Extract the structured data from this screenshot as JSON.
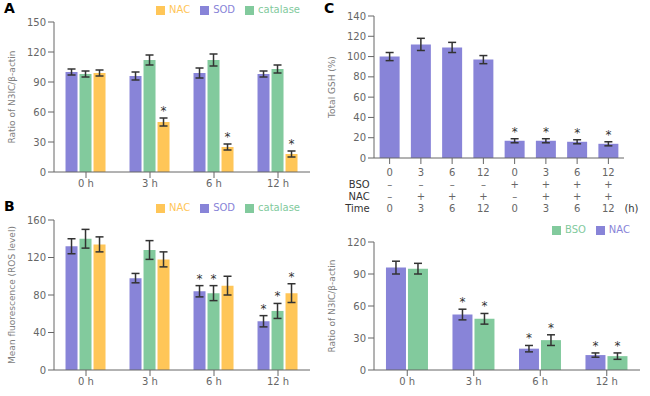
{
  "chart_data": [
    {
      "type": "bar",
      "title": "A",
      "categories": [
        "0 h",
        "3 h",
        "6 h",
        "12 h"
      ],
      "series": [
        {
          "name": "SOD",
          "color": "#8884d8",
          "values": [
            100,
            96,
            99,
            98
          ],
          "errors": [
            3,
            4,
            5,
            3
          ],
          "annotations": [
            null,
            null,
            null,
            null
          ]
        },
        {
          "name": "catalase",
          "color": "#82ca9d",
          "values": [
            98,
            112,
            112,
            103
          ],
          "errors": [
            3,
            5,
            6,
            4
          ],
          "annotations": [
            null,
            null,
            null,
            null
          ]
        },
        {
          "name": "NAC",
          "color": "#ffc658",
          "values": [
            99,
            50,
            25,
            18
          ],
          "errors": [
            3,
            4,
            3,
            3
          ],
          "annotations": [
            null,
            "*",
            "*",
            "*"
          ]
        }
      ],
      "ylim": [
        0,
        150
      ],
      "yticks": [
        0,
        30,
        60,
        90,
        120,
        150
      ],
      "ylabel": "Ratio of N3IC/β-actin",
      "legend": "upper right",
      "grid": false
    },
    {
      "type": "bar",
      "title": "B",
      "categories": [
        "0 h",
        "3 h",
        "6 h",
        "12 h"
      ],
      "series": [
        {
          "name": "SOD",
          "color": "#8884d8",
          "values": [
            132,
            98,
            84,
            52
          ],
          "errors": [
            8,
            5,
            6,
            6
          ],
          "annotations": [
            null,
            null,
            "*",
            "*"
          ]
        },
        {
          "name": "catalase",
          "color": "#82ca9d",
          "values": [
            140,
            128,
            82,
            63
          ],
          "errors": [
            10,
            10,
            8,
            8
          ],
          "annotations": [
            null,
            null,
            "*",
            "*"
          ]
        },
        {
          "name": "NAC",
          "color": "#ffc658",
          "values": [
            134,
            118,
            90,
            82
          ],
          "errors": [
            8,
            8,
            10,
            10
          ],
          "annotations": [
            null,
            null,
            null,
            "*"
          ]
        }
      ],
      "ylim": [
        0,
        160
      ],
      "yticks": [
        0,
        40,
        80,
        120,
        160
      ],
      "ylabel": "Mean fluorescence (ROS level)",
      "legend": "upper right",
      "grid": false
    },
    {
      "type": "bar",
      "title": "C",
      "categories": [
        "0",
        "3",
        "6",
        "12",
        "0",
        "3",
        "6",
        "12"
      ],
      "series": [
        {
          "color": "#8884d8",
          "values": [
            100,
            112,
            109,
            97,
            17,
            17,
            16,
            14
          ],
          "errors": [
            4,
            6,
            5,
            4,
            2,
            2,
            2,
            2
          ],
          "annotations": [
            null,
            null,
            null,
            null,
            "*",
            "*",
            "*",
            "*"
          ]
        }
      ],
      "ylim": [
        0,
        140
      ],
      "yticks": [
        0,
        20,
        40,
        60,
        80,
        100,
        120,
        140
      ],
      "ylabel": "Total GSH (%)",
      "grid": false,
      "annotations": [
        {
          "label": "BSO",
          "row": [
            "–",
            "–",
            "–",
            "–",
            "+",
            "+",
            "+",
            "+"
          ]
        },
        {
          "label": "NAC",
          "row": [
            "–",
            "+",
            "+",
            "+",
            "–",
            "+",
            "+",
            "+"
          ]
        },
        {
          "label": "Time",
          "row": [
            "0",
            "3",
            "6",
            "12",
            "0",
            "3",
            "6",
            "12"
          ],
          "after": "(h)"
        }
      ]
    },
    {
      "type": "bar",
      "categories": [
        "0 h",
        "3 h",
        "6 h",
        "12 h"
      ],
      "series": [
        {
          "name": "NAC",
          "color": "#8884d8",
          "values": [
            96,
            52,
            20,
            14
          ],
          "errors": [
            6,
            5,
            3,
            2
          ],
          "annotations": [
            null,
            "*",
            "*",
            "*"
          ]
        },
        {
          "name": "BSO",
          "color": "#82ca9d",
          "values": [
            95,
            48,
            28,
            13
          ],
          "errors": [
            5,
            5,
            5,
            3
          ],
          "annotations": [
            null,
            "*",
            "*",
            "*"
          ]
        }
      ],
      "ylim": [
        0,
        120
      ],
      "yticks": [
        0,
        30,
        60,
        90,
        120
      ],
      "ylabel": "Ratio of N3IC/β-actin",
      "legend": "upper right",
      "grid": false
    }
  ]
}
